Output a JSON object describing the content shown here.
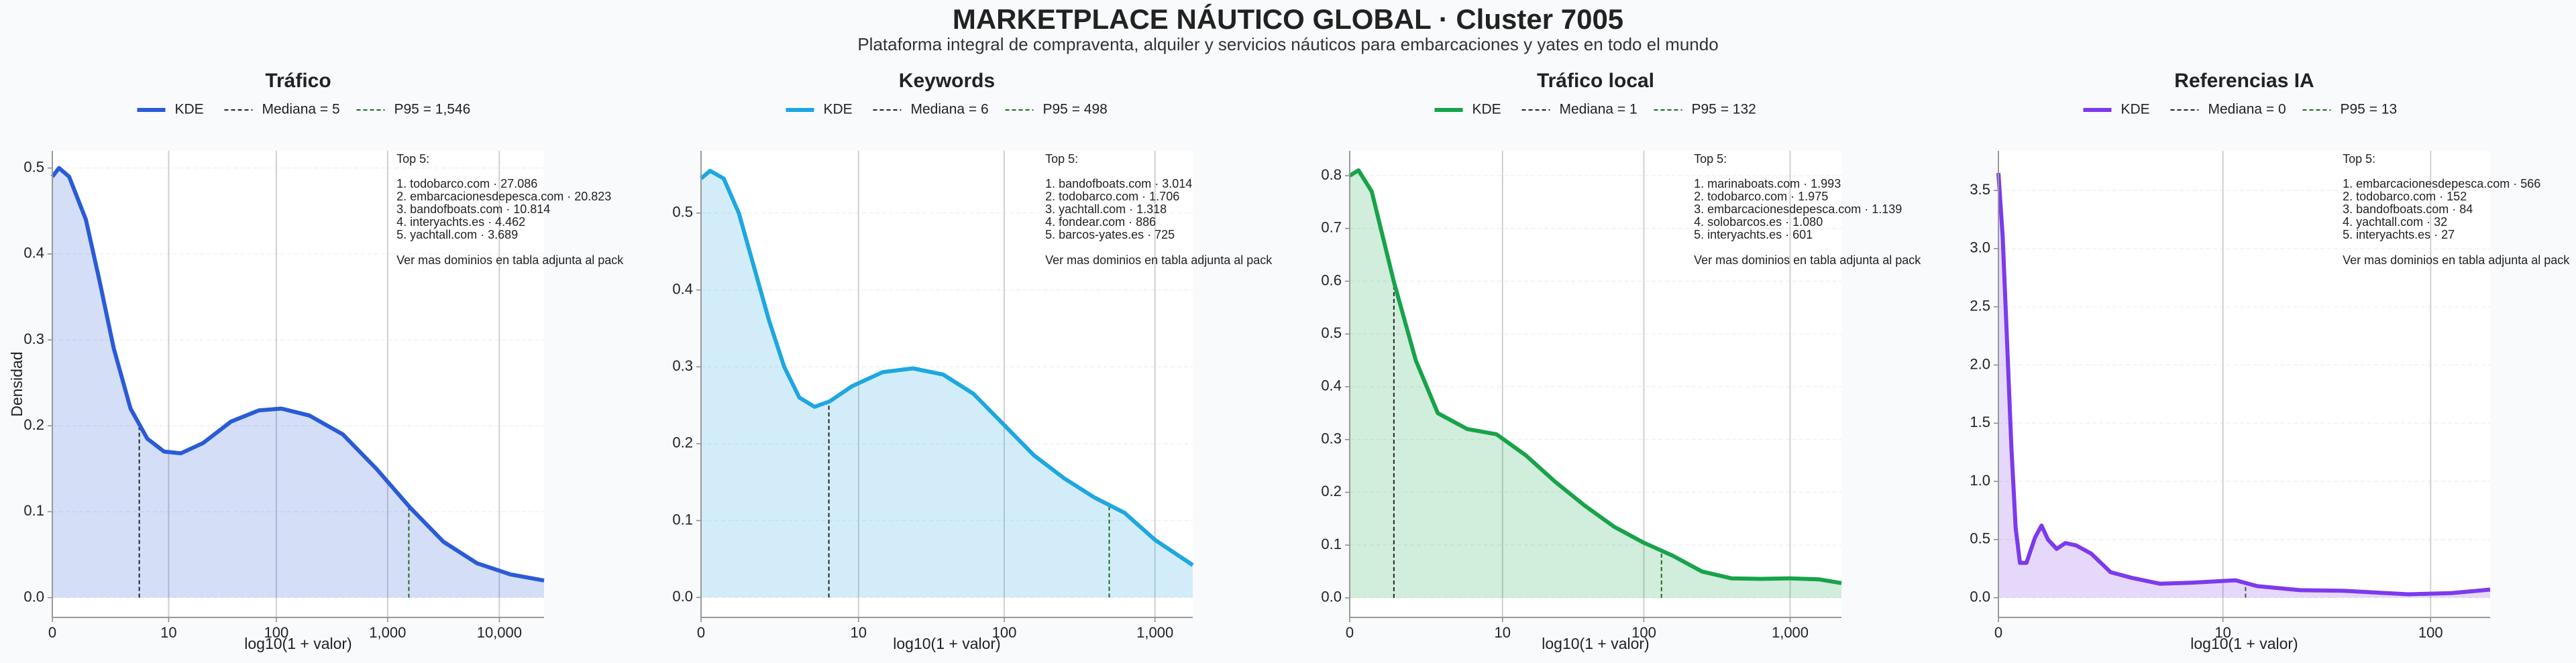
{
  "title": "MARKETPLACE NÁUTICO GLOBAL · Cluster 7005",
  "subtitle": "Plataforma integral de compraventa, alquiler y servicios náuticos para embarcaciones y yates en todo el mundo",
  "chart_data": [
    {
      "type": "area",
      "title": "Tráfico",
      "xlabel": "log10(1 + valor)",
      "ylabel": "Densidad",
      "x": [
        0,
        0.06,
        0.15,
        0.3,
        0.42,
        0.55,
        0.7,
        0.85,
        1.0,
        1.15,
        1.35,
        1.6,
        1.85,
        2.05,
        2.3,
        2.6,
        2.9,
        3.2,
        3.5,
        3.8,
        4.1,
        4.4
      ],
      "series": [
        {
          "name": "KDE",
          "color": "#2a5bd7",
          "values": [
            0.49,
            0.5,
            0.49,
            0.44,
            0.37,
            0.29,
            0.22,
            0.185,
            0.17,
            0.168,
            0.18,
            0.205,
            0.218,
            0.22,
            0.212,
            0.19,
            0.15,
            0.105,
            0.065,
            0.04,
            0.027,
            0.02
          ]
        }
      ],
      "median": {
        "value": 0.778,
        "label": "Mediana = 5",
        "color": "#222222"
      },
      "p95": {
        "value": 3.19,
        "label": "P95 = 1,546",
        "color": "#1a6b1a"
      },
      "xlim": [
        0,
        4.4
      ],
      "xticks": [
        0,
        {
          "value": 1.041,
          "label": "10"
        },
        {
          "value": 2.004,
          "label": "100"
        },
        {
          "value": 3.0004,
          "label": "1,000"
        },
        {
          "value": 4.0,
          "label": "10,000"
        }
      ],
      "ylim": [
        -0.023,
        0.52
      ],
      "yticks": [
        {
          "value": 0,
          "label": "0.0"
        },
        0.1,
        0.2,
        0.3,
        0.4,
        0.5
      ],
      "annotation_title": "Top 5:",
      "annotation_items": [
        "1. todobarco.com · 27.086",
        "2. embarcacionesdepesca.com · 20.823",
        "3. bandofboats.com · 10.814",
        "4. interyachts.es · 4.462",
        "5. yachtall.com · 3.689"
      ],
      "annotation_note": "Ver mas dominios en tabla adjunta al pack"
    },
    {
      "type": "area",
      "title": "Keywords",
      "xlabel": "log10(1 + valor)",
      "x": [
        0,
        0.06,
        0.15,
        0.25,
        0.35,
        0.45,
        0.55,
        0.65,
        0.75,
        0.85,
        1.0,
        1.2,
        1.4,
        1.6,
        1.8,
        2.0,
        2.2,
        2.4,
        2.6,
        2.8,
        3.0,
        3.25
      ],
      "series": [
        {
          "name": "KDE",
          "color": "#1ea7e0",
          "values": [
            0.545,
            0.555,
            0.545,
            0.5,
            0.43,
            0.36,
            0.3,
            0.26,
            0.248,
            0.255,
            0.275,
            0.293,
            0.298,
            0.29,
            0.265,
            0.225,
            0.185,
            0.155,
            0.13,
            0.11,
            0.075,
            0.042
          ]
        }
      ],
      "median": {
        "value": 0.845,
        "label": "Mediana = 6",
        "color": "#222222"
      },
      "p95": {
        "value": 2.698,
        "label": "P95 = 498",
        "color": "#1a6b1a"
      },
      "xlim": [
        0,
        3.25
      ],
      "xticks": [
        0,
        {
          "value": 1.041,
          "label": "10"
        },
        {
          "value": 2.004,
          "label": "100"
        },
        {
          "value": 3.0004,
          "label": "1,000"
        }
      ],
      "ylim": [
        -0.026,
        0.581
      ],
      "yticks": [
        {
          "value": 0,
          "label": "0.0"
        },
        0.1,
        0.2,
        0.3,
        0.4,
        0.5
      ],
      "annotation_title": "Top 5:",
      "annotation_items": [
        "1. bandofboats.com · 3.014",
        "2. todobarco.com · 1.706",
        "3. yachtall.com · 1.318",
        "4. fondear.com · 886",
        "5. barcos-yates.es · 725"
      ],
      "annotation_note": "Ver mas dominios en tabla adjunta al pack"
    },
    {
      "type": "area",
      "title": "Tráfico local",
      "xlabel": "log10(1 + valor)",
      "x": [
        0,
        0.06,
        0.15,
        0.3,
        0.45,
        0.6,
        0.8,
        1.0,
        1.2,
        1.4,
        1.6,
        1.8,
        2.0,
        2.2,
        2.4,
        2.6,
        2.8,
        3.0,
        3.2,
        3.35
      ],
      "series": [
        {
          "name": "KDE",
          "color": "#17a34a",
          "values": [
            0.8,
            0.81,
            0.77,
            0.6,
            0.45,
            0.35,
            0.32,
            0.31,
            0.27,
            0.22,
            0.175,
            0.135,
            0.105,
            0.08,
            0.05,
            0.037,
            0.036,
            0.037,
            0.035,
            0.028
          ]
        }
      ],
      "median": {
        "value": 0.301,
        "label": "Mediana = 1",
        "color": "#222222"
      },
      "p95": {
        "value": 2.124,
        "label": "P95 = 132",
        "color": "#1a6b1a"
      },
      "xlim": [
        0,
        3.35
      ],
      "xticks": [
        0,
        {
          "value": 1.041,
          "label": "10"
        },
        {
          "value": 2.004,
          "label": "100"
        },
        {
          "value": 3.0004,
          "label": "1,000"
        }
      ],
      "ylim": [
        -0.037,
        0.847
      ],
      "yticks": [
        {
          "value": 0,
          "label": "0.0"
        },
        0.1,
        0.2,
        0.3,
        0.4,
        0.5,
        0.6,
        0.7,
        0.8
      ],
      "annotation_title": "Top 5:",
      "annotation_items": [
        "1. marinaboats.com · 1.993",
        "2. todobarco.com · 1.975",
        "3. embarcacionesdepesca.com · 1.139",
        "4. solobarcos.es · 1.080",
        "5. interyachts.es · 601"
      ],
      "annotation_note": "Ver mas dominios en tabla adjunta al pack"
    },
    {
      "type": "area",
      "title": "Referencias IA",
      "xlabel": "log10(1 + valor)",
      "x": [
        0,
        0.02,
        0.04,
        0.06,
        0.08,
        0.1,
        0.13,
        0.17,
        0.2,
        0.23,
        0.27,
        0.31,
        0.36,
        0.43,
        0.52,
        0.62,
        0.75,
        0.9,
        1.1,
        1.2,
        1.4,
        1.6,
        1.9,
        2.1,
        2.28
      ],
      "series": [
        {
          "name": "KDE",
          "color": "#7c3aed",
          "values": [
            3.65,
            3.1,
            2.2,
            1.3,
            0.6,
            0.3,
            0.3,
            0.52,
            0.62,
            0.5,
            0.42,
            0.47,
            0.45,
            0.38,
            0.22,
            0.17,
            0.12,
            0.13,
            0.15,
            0.1,
            0.065,
            0.06,
            0.03,
            0.04,
            0.07
          ]
        }
      ],
      "median": {
        "value": 0,
        "label": "Mediana = 0",
        "color": "#222222"
      },
      "p95": {
        "value": 1.146,
        "label": "P95 = 13",
        "color": "#1a6b1a"
      },
      "xlim": [
        0,
        2.28
      ],
      "xticks": [
        0,
        {
          "value": 1.041,
          "label": "10"
        },
        {
          "value": 2.004,
          "label": "100"
        }
      ],
      "ylim": [
        -0.169,
        3.84
      ],
      "yticks": [
        {
          "value": 0,
          "label": "0.0"
        },
        0.5,
        {
          "value": 1,
          "label": "1.0"
        },
        1.5,
        {
          "value": 2,
          "label": "2.0"
        },
        2.5,
        {
          "value": 3,
          "label": "3.0"
        },
        3.5
      ],
      "annotation_title": "Top 5:",
      "annotation_items": [
        "1. embarcacionesdepesca.com · 566",
        "2. todobarco.com · 152",
        "3. bandofboats.com · 84",
        "4. yachtall.com · 32",
        "5. interyachts.es · 27"
      ],
      "annotation_note": "Ver mas dominios en tabla adjunta al pack"
    }
  ]
}
